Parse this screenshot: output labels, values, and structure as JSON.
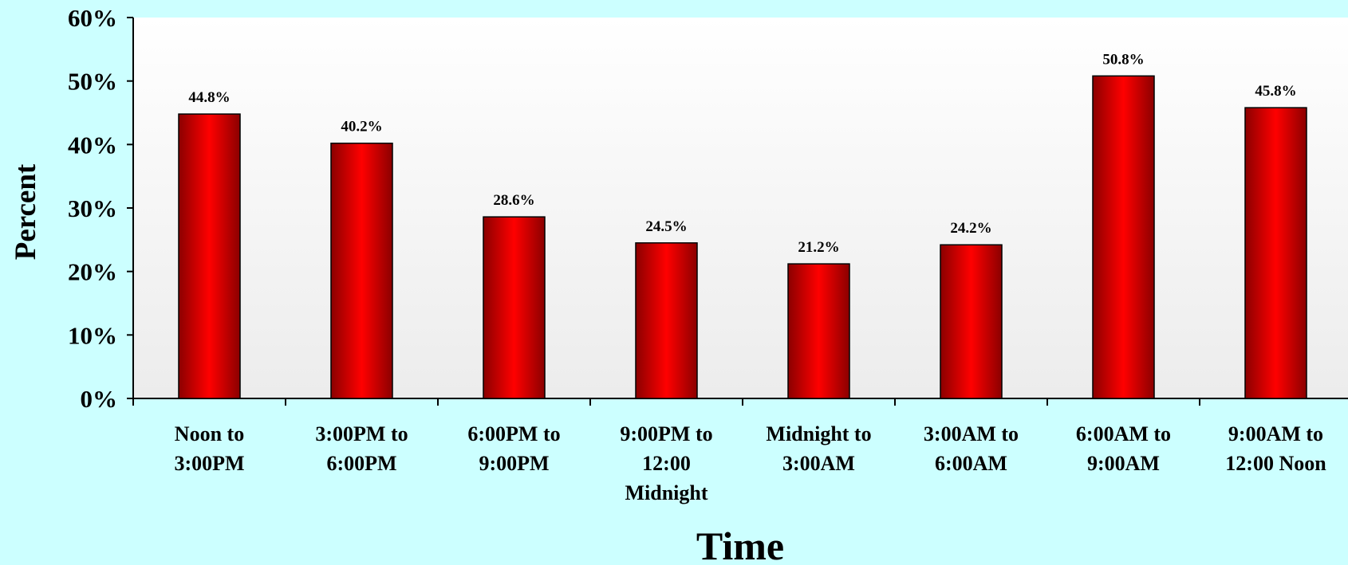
{
  "chart_data": {
    "type": "bar",
    "categories": [
      "Noon to 3:00PM",
      "3:00PM to 6:00PM",
      "6:00PM to 9:00PM",
      "9:00PM to 12:00 Midnight",
      "Midnight to 3:00AM",
      "3:00AM to 6:00AM",
      "6:00AM to 9:00AM",
      "9:00AM to 12:00 Noon"
    ],
    "category_lines": [
      [
        "Noon to",
        "3:00PM"
      ],
      [
        "3:00PM to",
        "6:00PM"
      ],
      [
        "6:00PM to",
        "9:00PM"
      ],
      [
        "9:00PM to",
        "12:00",
        "Midnight"
      ],
      [
        "Midnight to",
        "3:00AM"
      ],
      [
        "3:00AM to",
        "6:00AM"
      ],
      [
        "6:00AM to",
        "9:00AM"
      ],
      [
        "9:00AM to",
        "12:00 Noon"
      ]
    ],
    "values": [
      44.8,
      40.2,
      28.6,
      24.5,
      21.2,
      24.2,
      50.8,
      45.8
    ],
    "data_labels": [
      "44.8%",
      "40.2%",
      "28.6%",
      "24.5%",
      "21.2%",
      "24.2%",
      "50.8%",
      "45.8%"
    ],
    "title": "",
    "xlabel": "Time",
    "ylabel": "Percent",
    "ylim": [
      0,
      60
    ],
    "yticks": [
      0,
      10,
      20,
      30,
      40,
      50,
      60
    ],
    "ytick_labels": [
      "0%",
      "10%",
      "20%",
      "30%",
      "40%",
      "50%",
      "60%"
    ],
    "grid": false,
    "legend": "none",
    "colors": {
      "page_background": "#ccffff",
      "plot_background_top": "#ffffff",
      "plot_background_bottom": "#ececec",
      "bar_center": "#ff0000",
      "bar_edge": "#8b0000"
    }
  }
}
